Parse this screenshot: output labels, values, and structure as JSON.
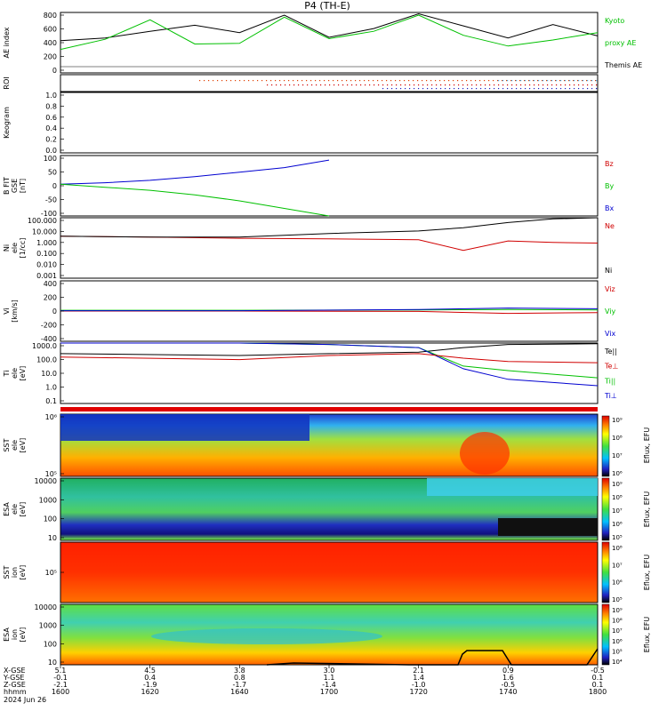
{
  "title": "P4 (TH-E)",
  "date_label": "2024 Jun 26",
  "colors": {
    "kyoto": "#00c000",
    "themis": "#000000",
    "red": "#d00000",
    "green": "#00c000",
    "blue": "#0000d0",
    "black": "#000000"
  },
  "panels": {
    "ae": {
      "ylabel": "AE index",
      "yticks": [
        "800",
        "600",
        "400",
        "200",
        "0"
      ],
      "legend": [
        {
          "text": "Kyoto",
          "color": "#00c000"
        },
        {
          "text": "proxy AE",
          "color": "#00c000"
        },
        {
          "text": "Themis AE",
          "color": "#000000"
        }
      ]
    },
    "roi": {
      "ylabel": "ROI"
    },
    "keogram": {
      "ylabel": "Keogram",
      "yticks": [
        "1.0",
        "0.8",
        "0.6",
        "0.4",
        "0.2",
        "0.0"
      ]
    },
    "bfgm": {
      "ylabel_lines": [
        "B FIT",
        "GSE",
        "[nT]"
      ],
      "yticks": [
        "100",
        "50",
        "0",
        "-50",
        "-100"
      ],
      "legend": [
        {
          "text": "Bz",
          "color": "#d00000"
        },
        {
          "text": "By",
          "color": "#00c000"
        },
        {
          "text": "Bx",
          "color": "#0000d0"
        }
      ]
    },
    "density": {
      "ylabel_lines": [
        "Ni",
        "ele",
        "[1/cc]"
      ],
      "yticks": [
        "100.000",
        "10.000",
        "1.000",
        "0.100",
        "0.010",
        "0.001"
      ],
      "legend": [
        {
          "text": "Ne",
          "color": "#d00000"
        },
        {
          "text": "Ni",
          "color": "#000000"
        }
      ]
    },
    "velocity": {
      "ylabel_lines": [
        "Vi",
        "[km/s]"
      ],
      "yticks": [
        "400",
        "200",
        "0",
        "-200",
        "-400"
      ],
      "legend": [
        {
          "text": "Viz",
          "color": "#d00000"
        },
        {
          "text": "Viy",
          "color": "#00c000"
        },
        {
          "text": "Vix",
          "color": "#0000d0"
        }
      ]
    },
    "temperature": {
      "ylabel_lines": [
        "Ti",
        "ele",
        "[eV]"
      ],
      "yticks": [
        "1000.0",
        "100.0",
        "10.0",
        "1.0",
        "0.1"
      ],
      "legend": [
        {
          "text": "Te||",
          "color": "#000000"
        },
        {
          "text": "Te⊥",
          "color": "#d00000"
        },
        {
          "text": "Ti||",
          "color": "#00c000"
        },
        {
          "text": "Ti⊥",
          "color": "#0000d0"
        }
      ]
    },
    "sst_e": {
      "ylabel_lines": [
        "SST",
        "ele",
        "[eV]"
      ],
      "yticks": [
        "10⁶",
        "10⁵"
      ],
      "cbar_label": "Eflux, EFU",
      "cbar_ticks": [
        "10⁹",
        "10⁸",
        "10⁷",
        "10⁶"
      ]
    },
    "esa_e": {
      "ylabel_lines": [
        "ESA",
        "ele",
        "[eV]"
      ],
      "yticks": [
        "10000",
        "1000",
        "100",
        "10"
      ],
      "cbar_label": "Eflux, EFU",
      "cbar_ticks": [
        "10⁹",
        "10⁸",
        "10⁷",
        "10⁶",
        "10⁵"
      ]
    },
    "sst_i": {
      "ylabel_lines": [
        "SST",
        "ion",
        "[eV]"
      ],
      "yticks": [
        "10⁵"
      ],
      "cbar_label": "Eflux, EFU",
      "cbar_ticks": [
        "10⁸",
        "10⁷",
        "10⁶",
        "10⁵"
      ]
    },
    "esa_i": {
      "ylabel_lines": [
        "ESA",
        "ion",
        "[eV]"
      ],
      "yticks": [
        "10000",
        "1000",
        "100",
        "10"
      ],
      "cbar_label": "Eflux, EFU",
      "cbar_ticks": [
        "10⁹",
        "10⁸",
        "10⁷",
        "10⁶",
        "10⁵",
        "10⁴"
      ]
    }
  },
  "xaxis": {
    "row_labels": [
      "X-GSE",
      "Y-GSE",
      "Z-GSE",
      "hhmm"
    ],
    "columns": [
      {
        "x": "5.1",
        "y": "-0.1",
        "z": "-2.1",
        "t": "1600"
      },
      {
        "x": "4.5",
        "y": "0.4",
        "z": "-1.9",
        "t": "1620"
      },
      {
        "x": "3.8",
        "y": "0.8",
        "z": "-1.7",
        "t": "1640"
      },
      {
        "x": "3.0",
        "y": "1.1",
        "z": "-1.4",
        "t": "1700"
      },
      {
        "x": "2.1",
        "y": "1.4",
        "z": "-1.0",
        "t": "1720"
      },
      {
        "x": "0.9",
        "y": "1.6",
        "z": "-0.5",
        "t": "1740"
      },
      {
        "x": "-0.5",
        "y": "0.1",
        "z": "0.1",
        "t": "1800"
      }
    ]
  },
  "chart_data": [
    {
      "type": "line",
      "title": "P4 (TH-E)",
      "ylabel": "AE index",
      "ylim": [
        -100,
        800
      ],
      "x": [
        "1600",
        "1610",
        "1620",
        "1630",
        "1640",
        "1650",
        "1700",
        "1710",
        "1720",
        "1730",
        "1740",
        "1750",
        "1800"
      ],
      "series": [
        {
          "name": "Themis AE",
          "values": [
            380,
            420,
            520,
            610,
            500,
            760,
            430,
            560,
            780,
            600,
            420,
            620,
            450
          ]
        },
        {
          "name": "Kyoto proxy AE",
          "values": [
            250,
            400,
            690,
            330,
            340,
            730,
            410,
            520,
            760,
            460,
            300,
            390,
            500
          ]
        }
      ]
    },
    {
      "type": "line",
      "ylabel": "B FIT GSE [nT]",
      "ylim": [
        -100,
        100
      ],
      "x": [
        "1600",
        "1610",
        "1620",
        "1630",
        "1640",
        "1650",
        "1700"
      ],
      "series": [
        {
          "name": "Bx",
          "values": [
            5,
            10,
            18,
            30,
            45,
            60,
            85
          ]
        },
        {
          "name": "By",
          "values": [
            5,
            -5,
            -15,
            -30,
            -50,
            -75,
            -100
          ]
        }
      ]
    },
    {
      "type": "line",
      "ylabel": "Ni ele [1/cc]",
      "ylim": [
        0.001,
        100
      ],
      "x": [
        "1600",
        "1620",
        "1640",
        "1700",
        "1720",
        "1730",
        "1740",
        "1750",
        "1800"
      ],
      "series": [
        {
          "name": "Ne",
          "values": [
            3,
            2.5,
            2,
            1.8,
            1.5,
            0.2,
            1.2,
            0.9,
            0.8
          ]
        },
        {
          "name": "Ni",
          "values": [
            3,
            2.5,
            2.5,
            5,
            8,
            15,
            40,
            80,
            100
          ]
        }
      ]
    },
    {
      "type": "line",
      "ylabel": "Vi [km/s]",
      "ylim": [
        -400,
        400
      ],
      "x": [
        "1600",
        "1640",
        "1720",
        "1740",
        "1800"
      ],
      "series": [
        {
          "name": "Viz",
          "values": [
            0,
            0,
            -5,
            -30,
            -20
          ]
        },
        {
          "name": "Viy",
          "values": [
            10,
            10,
            15,
            20,
            15
          ]
        },
        {
          "name": "Vix",
          "values": [
            5,
            5,
            20,
            40,
            30
          ]
        }
      ]
    },
    {
      "type": "line",
      "ylabel": "Ti ele [eV]",
      "ylim": [
        0.1,
        1000
      ],
      "x": [
        "1600",
        "1640",
        "1700",
        "1720",
        "1730",
        "1740",
        "1800"
      ],
      "series": [
        {
          "name": "Te||",
          "values": [
            200,
            150,
            200,
            250,
            500,
            800,
            900
          ]
        },
        {
          "name": "Ti||",
          "values": [
            1000,
            1000,
            800,
            500,
            30,
            15,
            5
          ]
        },
        {
          "name": "Ti⊥",
          "values": [
            1000,
            1000,
            800,
            500,
            20,
            4,
            1.5
          ]
        },
        {
          "name": "Te⊥",
          "values": [
            120,
            80,
            150,
            200,
            100,
            60,
            50
          ]
        }
      ]
    },
    {
      "type": "heatmap",
      "ylabel": "SST ele [eV]",
      "colorbar": "Eflux, EFU"
    },
    {
      "type": "heatmap",
      "ylabel": "ESA ele [eV]",
      "colorbar": "Eflux, EFU"
    },
    {
      "type": "heatmap",
      "ylabel": "SST ion [eV]",
      "colorbar": "Eflux, EFU"
    },
    {
      "type": "heatmap",
      "ylabel": "ESA ion [eV]",
      "colorbar": "Eflux, EFU"
    }
  ]
}
